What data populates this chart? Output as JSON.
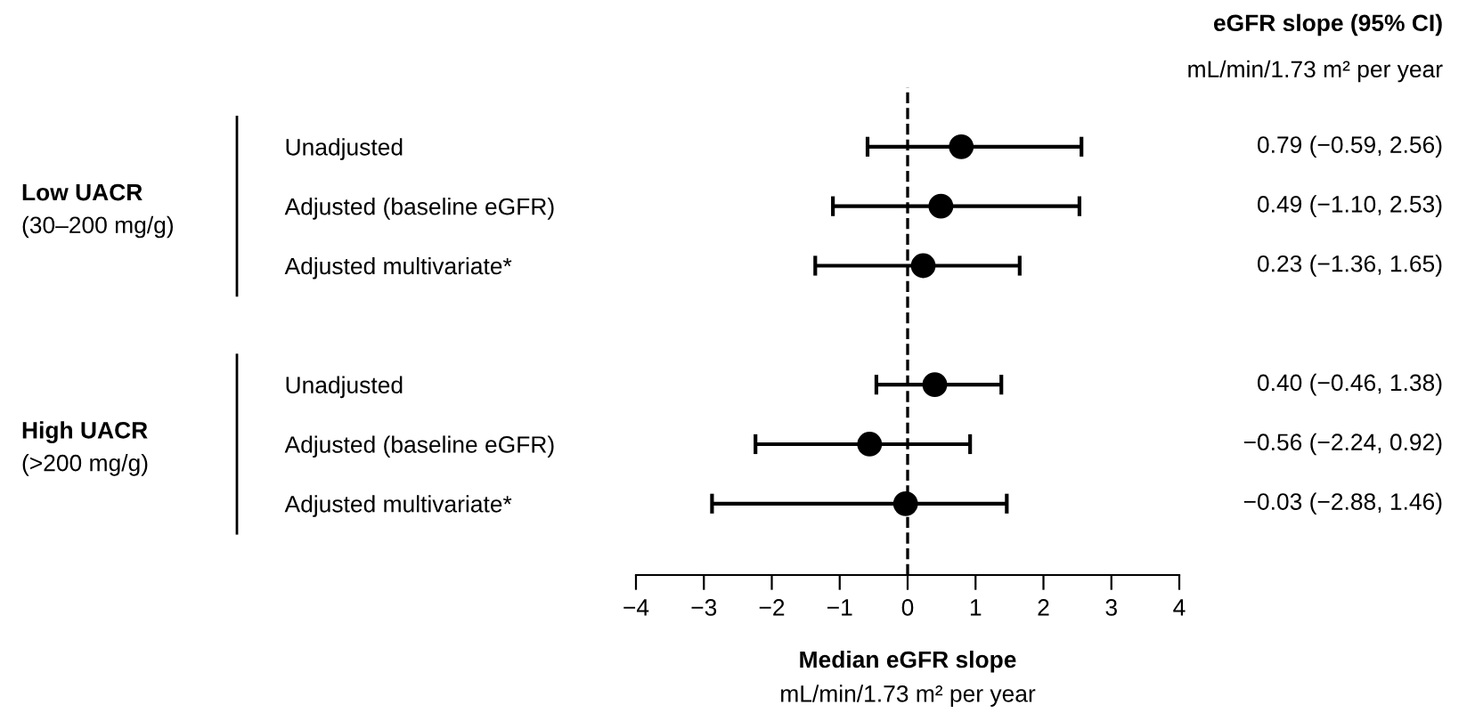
{
  "chart_data": {
    "type": "scatter",
    "orientation": "horizontal",
    "categories": [
      "Unadjusted",
      "Adjusted (baseline eGFR)",
      "Adjusted multivariate*",
      null,
      "Unadjusted",
      "Adjusted (baseline eGFR)",
      "Adjusted multivariate*"
    ],
    "values": [
      0.79,
      0.49,
      0.23,
      null,
      0.4,
      -0.56,
      -0.03
    ],
    "errors": [
      [
        -0.59,
        2.56
      ],
      [
        -1.1,
        2.53
      ],
      [
        -1.36,
        1.65
      ],
      null,
      [
        -0.46,
        1.38
      ],
      [
        -2.24,
        0.92
      ],
      [
        -2.88,
        1.46
      ]
    ],
    "value_labels": [
      "0.79 (−0.59, 2.56)",
      "0.49 (−1.10, 2.53)",
      "0.23 (−1.36, 1.65)",
      null,
      "0.40 (−0.46, 1.38)",
      "−0.56 (−2.24, 0.92)",
      "−0.03 (−2.88, 1.46)"
    ],
    "color": "#000000",
    "marker": "circle",
    "xlim": [
      -4,
      4
    ],
    "xticks": [
      -4,
      -3,
      -2,
      -1,
      0,
      1,
      2,
      3,
      4
    ],
    "xlabel": "Median eGFR slope\nmL/min/1.73 m² per year",
    "ref_lines": [
      {
        "axis": "x",
        "value": 0,
        "line_style": "dashed",
        "color": "#000000"
      }
    ],
    "annotations": [
      "Low UACR",
      "(30–200 mg/g)",
      "High UACR",
      "(>200 mg/g)",
      "eGFR slope (95% CI)",
      "mL/min/1.73 m² per year"
    ],
    "grid": false
  }
}
